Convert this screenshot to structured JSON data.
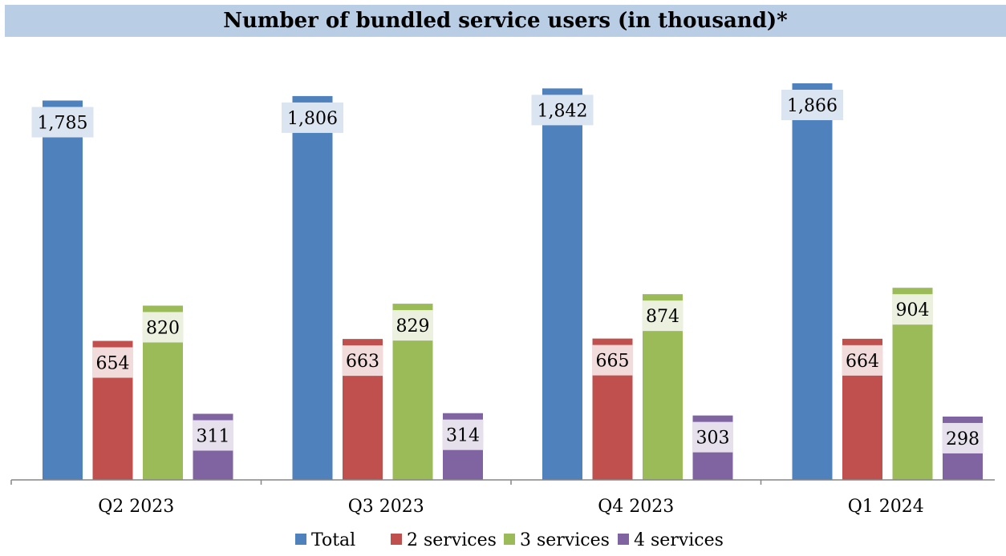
{
  "chart_data": {
    "type": "bar",
    "title": "Number of bundled service users (in thousand)*",
    "categories": [
      "Q2 2023",
      "Q3 2023",
      "Q4 2023",
      "Q1 2024"
    ],
    "series": [
      {
        "name": "Total",
        "values": [
          1785,
          1806,
          1842,
          1866
        ],
        "color": "#4f81bd",
        "label_bg": "#dbe5f1"
      },
      {
        "name": "2 services",
        "values": [
          654,
          663,
          665,
          664
        ],
        "color": "#c0504d",
        "label_bg": "#f2dcdb"
      },
      {
        "name": "3 services",
        "values": [
          820,
          829,
          874,
          904
        ],
        "color": "#9bbb59",
        "label_bg": "#ebf1de"
      },
      {
        "name": "4 services",
        "values": [
          311,
          314,
          303,
          298
        ],
        "color": "#8064a2",
        "label_bg": "#e5e0ec"
      }
    ],
    "data_labels": [
      [
        "1,785",
        "654",
        "820",
        "311"
      ],
      [
        "1,806",
        "663",
        "829",
        "314"
      ],
      [
        "1,842",
        "665",
        "874",
        "303"
      ],
      [
        "1,866",
        "664",
        "904",
        "298"
      ]
    ],
    "ylim": [
      0,
      1866
    ],
    "grid": false,
    "legend_position": "bottom",
    "xlabel": "",
    "ylabel": ""
  }
}
